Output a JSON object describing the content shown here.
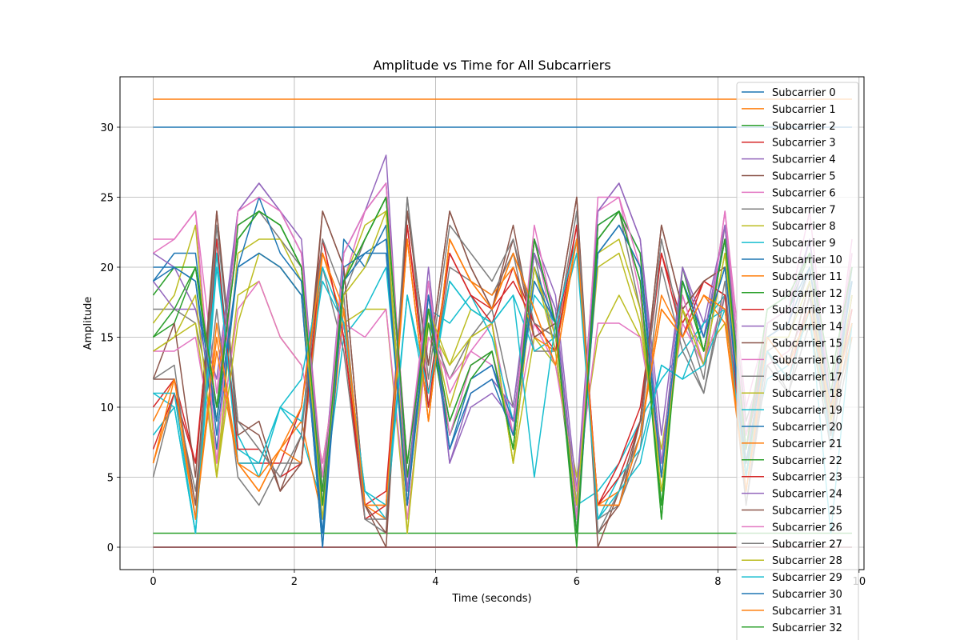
{
  "chart_data": {
    "type": "line",
    "title": "Amplitude vs Time for All Subcarriers",
    "xlabel": "Time (seconds)",
    "ylabel": "Amplitude",
    "xlim": [
      -0.47,
      10.07
    ],
    "ylim": [
      -1.6,
      33.6
    ],
    "xticks": [
      0,
      2,
      4,
      6,
      8,
      10
    ],
    "yticks": [
      0,
      5,
      10,
      15,
      20,
      25,
      30
    ],
    "grid": true,
    "legend_position": "top-right",
    "palette": [
      "#1f77b4",
      "#ff7f0e",
      "#2ca02c",
      "#d62728",
      "#9467bd",
      "#8c564b",
      "#e377c2",
      "#7f7f7f",
      "#bcbd22",
      "#17becf"
    ],
    "x": [
      0,
      0.3,
      0.6,
      0.9,
      1.2,
      1.5,
      1.8,
      2.1,
      2.4,
      2.7,
      3.0,
      3.3,
      3.6,
      3.9,
      4.2,
      4.5,
      4.8,
      5.1,
      5.4,
      5.7,
      6.0,
      6.3,
      6.6,
      6.9,
      7.2,
      7.5,
      7.8,
      8.1,
      8.4,
      8.7,
      9.0,
      9.3,
      9.6,
      9.9
    ],
    "series": [
      {
        "name": "Subcarrier 0",
        "values": [
          30,
          30,
          30,
          30,
          30,
          30,
          30,
          30,
          30,
          30,
          30,
          30,
          30,
          30,
          30,
          30,
          30,
          30,
          30,
          30,
          30,
          30,
          30,
          30,
          30,
          30,
          30,
          30,
          30,
          30,
          30,
          30,
          30,
          30
        ]
      },
      {
        "name": "Subcarrier 1",
        "values": [
          32,
          32,
          32,
          32,
          32,
          32,
          32,
          32,
          32,
          32,
          32,
          32,
          32,
          32,
          32,
          32,
          32,
          32,
          32,
          32,
          32,
          32,
          32,
          32,
          32,
          32,
          32,
          32,
          32,
          32,
          32,
          32,
          32,
          32
        ]
      },
      {
        "name": "Subcarrier 2",
        "values": [
          1,
          1,
          1,
          1,
          1,
          1,
          1,
          1,
          1,
          1,
          1,
          1,
          1,
          1,
          1,
          1,
          1,
          1,
          1,
          1,
          1,
          1,
          1,
          1,
          1,
          1,
          1,
          1,
          1,
          1,
          1,
          1,
          1,
          1
        ]
      },
      {
        "name": "Subcarrier 3",
        "values": [
          0,
          0,
          0,
          0,
          0,
          0,
          0,
          0,
          0,
          0,
          0,
          0,
          0,
          0,
          0,
          0,
          0,
          0,
          0,
          0,
          0,
          0,
          0,
          0,
          0,
          0,
          0,
          0,
          0,
          0,
          0,
          0,
          0,
          0
        ]
      },
      {
        "name": "Subcarrier 4",
        "values": [
          0,
          0,
          0,
          0,
          0,
          0,
          0,
          0,
          0,
          0,
          0,
          0,
          0,
          0,
          0,
          0,
          0,
          0,
          0,
          0,
          0,
          0,
          0,
          0,
          0,
          0,
          0,
          0,
          0,
          0,
          0,
          0,
          0,
          0
        ]
      },
      {
        "name": "Subcarrier 5",
        "values": [
          0,
          0,
          0,
          0,
          0,
          0,
          0,
          0,
          0,
          0,
          0,
          0,
          0,
          0,
          0,
          0,
          0,
          0,
          0,
          0,
          0,
          0,
          0,
          0,
          0,
          0,
          0,
          0,
          0,
          0,
          0,
          0,
          0,
          0
        ]
      },
      {
        "name": "Subcarrier 6",
        "values": [
          21,
          22,
          24,
          11,
          24,
          25,
          24,
          21,
          5,
          19,
          24,
          26,
          6,
          18,
          11,
          14,
          16,
          8,
          22,
          15,
          3,
          24,
          25,
          18,
          5,
          18,
          13,
          24,
          10,
          16,
          17,
          21,
          10,
          22
        ]
      },
      {
        "name": "Subcarrier 7",
        "values": [
          17,
          17,
          16,
          9,
          23,
          24,
          22,
          20,
          4,
          18,
          22,
          25,
          5,
          16,
          12,
          15,
          17,
          10,
          21,
          14,
          2,
          22,
          24,
          17,
          6,
          17,
          12,
          23,
          9,
          14,
          15,
          20,
          9,
          21
        ]
      },
      {
        "name": "Subcarrier 8",
        "values": [
          14,
          15,
          16,
          5,
          18,
          19,
          15,
          13,
          6,
          16,
          17,
          17,
          1,
          16,
          13,
          17,
          16,
          6,
          15,
          13,
          5,
          15,
          18,
          15,
          7,
          17,
          14,
          16,
          8,
          13,
          14,
          16,
          8,
          18
        ]
      },
      {
        "name": "Subcarrier 9",
        "values": [
          8,
          10,
          1,
          22,
          7,
          6,
          10,
          8,
          3,
          15,
          17,
          20,
          4,
          17,
          16,
          18,
          15,
          9,
          18,
          16,
          3,
          4,
          6,
          9,
          12,
          14,
          16,
          18,
          6,
          12,
          13,
          19,
          7,
          20
        ]
      },
      {
        "name": "Subcarrier 10",
        "values": [
          19,
          21,
          21,
          8,
          20,
          21,
          20,
          18,
          0,
          22,
          20,
          23,
          3,
          18,
          8,
          12,
          13,
          9,
          21,
          17,
          2,
          23,
          24,
          21,
          5,
          19,
          15,
          22,
          6,
          15,
          16,
          22,
          9,
          19
        ]
      },
      {
        "name": "Subcarrier 11",
        "values": [
          6,
          11,
          2,
          15,
          6,
          4,
          7,
          9,
          2,
          17,
          3,
          3,
          22,
          9,
          22,
          19,
          17,
          21,
          17,
          13,
          22,
          3,
          3,
          8,
          17,
          15,
          18,
          17,
          5,
          15,
          13,
          17,
          10,
          16
        ]
      },
      {
        "name": "Subcarrier 12",
        "values": [
          15,
          16,
          20,
          10,
          22,
          24,
          23,
          20,
          3,
          19,
          22,
          25,
          6,
          17,
          9,
          13,
          14,
          7,
          22,
          16,
          1,
          22,
          24,
          19,
          3,
          19,
          14,
          22,
          7,
          17,
          18,
          21,
          12,
          20
        ]
      },
      {
        "name": "Subcarrier 13",
        "values": [
          10,
          12,
          6,
          22,
          6,
          6,
          6,
          10,
          22,
          15,
          3,
          4,
          23,
          11,
          21,
          18,
          16,
          20,
          16,
          15,
          23,
          3,
          6,
          10,
          21,
          16,
          19,
          18,
          6,
          14,
          12,
          18,
          9,
          17
        ]
      },
      {
        "name": "Subcarrier 14",
        "values": [
          21,
          20,
          17,
          12,
          24,
          26,
          24,
          21,
          4,
          21,
          24,
          28,
          4,
          20,
          6,
          11,
          12,
          10,
          22,
          18,
          4,
          24,
          26,
          22,
          8,
          20,
          16,
          23,
          7,
          16,
          17,
          22,
          11,
          20
        ]
      },
      {
        "name": "Subcarrier 15",
        "values": [
          12,
          16,
          5,
          24,
          9,
          8,
          4,
          8,
          24,
          20,
          3,
          0,
          24,
          13,
          24,
          20,
          17,
          23,
          15,
          16,
          25,
          0,
          4,
          9,
          23,
          17,
          19,
          20,
          8,
          15,
          13,
          19,
          8,
          18
        ]
      },
      {
        "name": "Subcarrier 16",
        "values": [
          14,
          14,
          15,
          6,
          17,
          19,
          15,
          13,
          6,
          16,
          15,
          17,
          2,
          15,
          12,
          14,
          13,
          8,
          16,
          13,
          4,
          16,
          16,
          15,
          6,
          16,
          13,
          18,
          7,
          13,
          14,
          17,
          8,
          18
        ]
      },
      {
        "name": "Subcarrier 17",
        "values": [
          5,
          11,
          4,
          17,
          5,
          3,
          6,
          6,
          20,
          14,
          2,
          1,
          25,
          10,
          20,
          19,
          18,
          21,
          14,
          14,
          22,
          2,
          3,
          7,
          20,
          14,
          11,
          18,
          3,
          13,
          11,
          16,
          7,
          15
        ]
      },
      {
        "name": "Subcarrier 18",
        "values": [
          16,
          18,
          23,
          5,
          21,
          22,
          22,
          19,
          2,
          19,
          23,
          24,
          3,
          17,
          10,
          15,
          16,
          6,
          20,
          15,
          3,
          21,
          22,
          17,
          4,
          17,
          13,
          21,
          6,
          15,
          16,
          20,
          10,
          19
        ]
      },
      {
        "name": "Subcarrier 19",
        "values": [
          11,
          10,
          1,
          20,
          8,
          5,
          10,
          9,
          19,
          16,
          4,
          2,
          18,
          10,
          19,
          17,
          16,
          18,
          14,
          15,
          21,
          2,
          5,
          7,
          13,
          12,
          16,
          17,
          4,
          14,
          12,
          17,
          8,
          16
        ]
      },
      {
        "name": "Subcarrier 20",
        "values": [
          20,
          20,
          19,
          7,
          20,
          25,
          21,
          19,
          1,
          20,
          21,
          22,
          3,
          17,
          7,
          12,
          13,
          8,
          20,
          16,
          2,
          21,
          23,
          20,
          5,
          19,
          15,
          20,
          5,
          16,
          17,
          20,
          10,
          19
        ]
      },
      {
        "name": "Subcarrier 21",
        "values": [
          9,
          12,
          3,
          14,
          6,
          5,
          7,
          6,
          21,
          16,
          3,
          2,
          22,
          9,
          22,
          19,
          18,
          20,
          15,
          14,
          22,
          3,
          4,
          8,
          18,
          15,
          18,
          16,
          4,
          14,
          12,
          17,
          9,
          15
        ]
      },
      {
        "name": "Subcarrier 22",
        "values": [
          18,
          20,
          20,
          9,
          23,
          24,
          23,
          20,
          4,
          19,
          22,
          25,
          5,
          16,
          8,
          12,
          14,
          7,
          22,
          16,
          0,
          23,
          24,
          21,
          2,
          20,
          14,
          22,
          5,
          16,
          17,
          21,
          11,
          20
        ]
      },
      {
        "name": "Subcarrier 23",
        "values": [
          7,
          11,
          6,
          21,
          7,
          7,
          5,
          6,
          22,
          15,
          2,
          3,
          23,
          10,
          21,
          18,
          17,
          19,
          16,
          14,
          23,
          3,
          5,
          9,
          21,
          15,
          19,
          18,
          5,
          14,
          12,
          18,
          9,
          17
        ]
      },
      {
        "name": "Subcarrier 24",
        "values": [
          19,
          17,
          17,
          10,
          24,
          26,
          24,
          22,
          3,
          21,
          24,
          26,
          4,
          19,
          6,
          10,
          11,
          9,
          21,
          17,
          3,
          24,
          26,
          22,
          6,
          20,
          15,
          23,
          6,
          15,
          16,
          22,
          10,
          20
        ]
      },
      {
        "name": "Subcarrier 25",
        "values": [
          12,
          12,
          3,
          24,
          8,
          9,
          4,
          6,
          24,
          20,
          3,
          1,
          24,
          13,
          24,
          20,
          17,
          22,
          15,
          16,
          25,
          1,
          3,
          9,
          23,
          17,
          19,
          20,
          7,
          15,
          13,
          19,
          8,
          18
        ]
      },
      {
        "name": "Subcarrier 26",
        "values": [
          22,
          22,
          24,
          6,
          24,
          25,
          24,
          21,
          3,
          21,
          24,
          26,
          6,
          19,
          8,
          13,
          14,
          8,
          23,
          16,
          2,
          25,
          25,
          20,
          5,
          18,
          13,
          24,
          8,
          16,
          17,
          24,
          10,
          21
        ]
      },
      {
        "name": "Subcarrier 27",
        "values": [
          12,
          13,
          2,
          23,
          9,
          7,
          5,
          8,
          22,
          18,
          2,
          2,
          25,
          12,
          23,
          21,
          19,
          22,
          16,
          15,
          24,
          1,
          4,
          8,
          22,
          15,
          11,
          19,
          3,
          14,
          11,
          18,
          8,
          16
        ]
      },
      {
        "name": "Subcarrier 28",
        "values": [
          14,
          15,
          18,
          5,
          16,
          21,
          20,
          18,
          3,
          18,
          20,
          24,
          1,
          17,
          13,
          15,
          16,
          6,
          20,
          14,
          3,
          20,
          21,
          16,
          5,
          17,
          13,
          21,
          6,
          15,
          15,
          19,
          9,
          18
        ]
      },
      {
        "name": "Subcarrier 29",
        "values": [
          11,
          11,
          1,
          21,
          6,
          6,
          10,
          12,
          20,
          16,
          4,
          3,
          18,
          11,
          19,
          17,
          16,
          18,
          5,
          16,
          22,
          2,
          4,
          6,
          13,
          12,
          13,
          17,
          5,
          14,
          12,
          17,
          1,
          16
        ]
      },
      {
        "name": "Subcarrier 30",
        "values": [
          19,
          20,
          19,
          9,
          20,
          21,
          20,
          18,
          0,
          19,
          21,
          21,
          3,
          18,
          7,
          11,
          12,
          8,
          19,
          16,
          1,
          21,
          23,
          20,
          5,
          19,
          15,
          20,
          6,
          15,
          16,
          20,
          10,
          19
        ]
      },
      {
        "name": "Subcarrier 31",
        "values": [
          6,
          12,
          2,
          16,
          6,
          4,
          7,
          10,
          21,
          17,
          3,
          3,
          22,
          9,
          22,
          19,
          17,
          21,
          17,
          13,
          22,
          3,
          3,
          8,
          17,
          15,
          18,
          17,
          4,
          15,
          13,
          17,
          10,
          16
        ]
      },
      {
        "name": "Subcarrier 32",
        "values": [
          15,
          17,
          20,
          10,
          22,
          24,
          23,
          20,
          3,
          19,
          22,
          25,
          6,
          17,
          9,
          13,
          14,
          7,
          22,
          16,
          1,
          22,
          24,
          19,
          2,
          19,
          14,
          22,
          7,
          17,
          18,
          21,
          12,
          20
        ]
      }
    ]
  }
}
